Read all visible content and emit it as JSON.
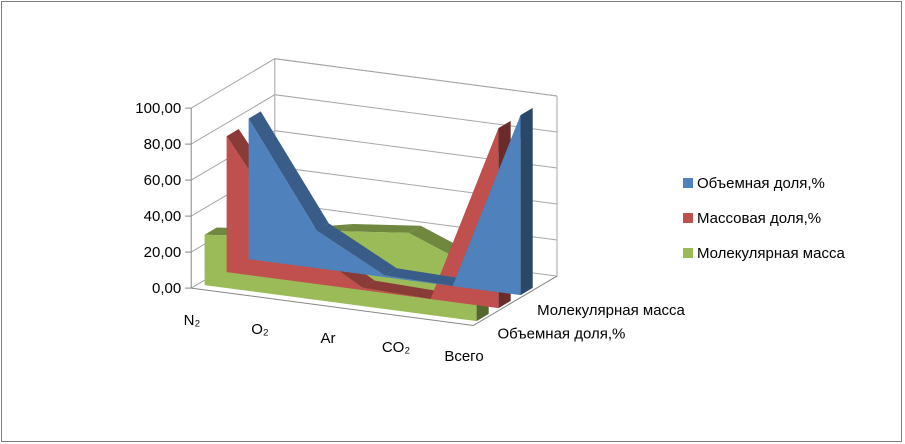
{
  "chart_data": {
    "type": "area",
    "view": "3d",
    "categories": [
      "N₂",
      "O₂",
      "Ar",
      "CO₂",
      "Всего"
    ],
    "series": [
      {
        "name": "Объемная доля,%",
        "values": [
          78.08,
          20.95,
          0.93,
          0.03,
          100.0
        ],
        "color": "#4f81bd"
      },
      {
        "name": "Массовая доля,%",
        "values": [
          75.5,
          23.15,
          1.28,
          0.05,
          100.0
        ],
        "color": "#c0504d"
      },
      {
        "name": "Молекулярная масса",
        "values": [
          28.01,
          32.0,
          39.95,
          44.01,
          28.98
        ],
        "color": "#9bbb59"
      }
    ],
    "y_ticks": [
      "0,00",
      "20,00",
      "40,00",
      "60,00",
      "80,00",
      "100,00"
    ],
    "ylim": [
      0,
      100
    ],
    "depth_axis_labels": [
      "Объемная доля,%",
      "Молекулярная масса"
    ],
    "legend": {
      "placement": "right",
      "entries": [
        "Объемная доля,%",
        "Массовая доля,%",
        "Молекулярная масса"
      ]
    },
    "grid": true
  }
}
